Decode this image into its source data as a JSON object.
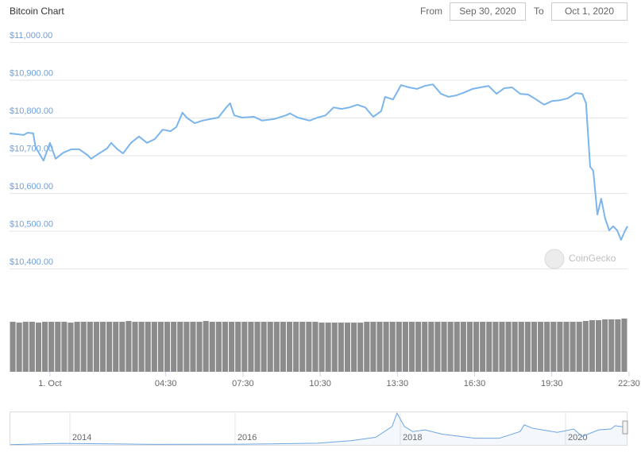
{
  "date_range": {
    "from_label": "From",
    "from_date": "Sep 30, 2020",
    "to_label": "To",
    "to_date": "Oct 1, 2020"
  },
  "watermark": "CoinGecko",
  "chart_data": [
    {
      "type": "line",
      "title": "Bitcoin Chart",
      "color": "#7cb5ec",
      "grid": true,
      "x": [
        -1.57,
        -1.02,
        -0.86,
        -0.65,
        -0.56,
        -0.25,
        0,
        0.22,
        0.52,
        0.83,
        1.14,
        1.45,
        1.6,
        1.91,
        2.22,
        2.38,
        2.62,
        2.84,
        3.15,
        3.46,
        3.77,
        4.07,
        4.38,
        4.69,
        4.91,
        5.15,
        5.31,
        5.62,
        5.93,
        6.23,
        6.54,
        6.85,
        7.0,
        7.16,
        7.47,
        7.93,
        8.24,
        8.7,
        9.17,
        9.32,
        9.63,
        10.09,
        10.4,
        10.71,
        11.02,
        11.33,
        11.64,
        11.94,
        12.25,
        12.56,
        12.87,
        13.02,
        13.33,
        13.64,
        13.95,
        14.26,
        14.57,
        14.88,
        15.19,
        15.49,
        15.8,
        16.11,
        16.42,
        16.73,
        17.04,
        17.35,
        17.65,
        17.96,
        18.27,
        18.58,
        18.89,
        19.2,
        19.51,
        19.81,
        20.12,
        20.43,
        20.68,
        20.83,
        20.99,
        21.11,
        21.27,
        21.42,
        21.57,
        21.73,
        21.88,
        22.04,
        22.19,
        22.35,
        22.44
      ],
      "values": [
        10758,
        10754,
        10760,
        10758,
        10722,
        10686,
        10733,
        10691,
        10707,
        10716,
        10716,
        10701,
        10691,
        10705,
        10718,
        10733,
        10716,
        10705,
        10733,
        10750,
        10733,
        10743,
        10768,
        10764,
        10775,
        10813,
        10800,
        10785,
        10792,
        10796,
        10800,
        10827,
        10838,
        10806,
        10800,
        10802,
        10792,
        10796,
        10806,
        10811,
        10800,
        10792,
        10800,
        10806,
        10827,
        10823,
        10827,
        10834,
        10827,
        10802,
        10817,
        10855,
        10848,
        10886,
        10880,
        10876,
        10884,
        10888,
        10863,
        10855,
        10859,
        10867,
        10876,
        10880,
        10884,
        10863,
        10878,
        10880,
        10863,
        10861,
        10848,
        10834,
        10844,
        10846,
        10851,
        10865,
        10863,
        10838,
        10670,
        10659,
        10543,
        10585,
        10533,
        10501,
        10512,
        10501,
        10476,
        10501,
        10512
      ],
      "xlim": [
        -1.57,
        22.44
      ],
      "xticks": [
        {
          "value": 0,
          "label": "1. Oct"
        },
        {
          "value": 4.5,
          "label": "04:30"
        },
        {
          "value": 7.5,
          "label": "07:30"
        },
        {
          "value": 10.5,
          "label": "10:30"
        },
        {
          "value": 13.5,
          "label": "13:30"
        },
        {
          "value": 16.5,
          "label": "16:30"
        },
        {
          "value": 19.5,
          "label": "19:30"
        },
        {
          "value": 22.5,
          "label": "22:30"
        }
      ],
      "ylim": [
        10400,
        11000
      ],
      "yticks": [
        {
          "value": 10400,
          "label": "$10,400.00"
        },
        {
          "value": 10500,
          "label": "$10,500.00"
        },
        {
          "value": 10600,
          "label": "$10,600.00"
        },
        {
          "value": 10700,
          "label": "$10,700.00"
        },
        {
          "value": 10800,
          "label": "$10,800.00"
        },
        {
          "value": 10900,
          "label": "$10,900.00"
        },
        {
          "value": 11000,
          "label": "$11,000.00"
        }
      ]
    },
    {
      "type": "bar",
      "color": "#8c8c8c",
      "ylim": [
        0,
        66
      ],
      "values": [
        62,
        61,
        62,
        62,
        61,
        62,
        62,
        62,
        62,
        61,
        62,
        62,
        62,
        62,
        62,
        62,
        62,
        62,
        63,
        62,
        62,
        62,
        62,
        62,
        62,
        62,
        62,
        62,
        62,
        62,
        63,
        62,
        62,
        62,
        62,
        62,
        62,
        62,
        62,
        62,
        62,
        62,
        62,
        62,
        62,
        62,
        62,
        62,
        61,
        61,
        61,
        61,
        61,
        61,
        61,
        62,
        62,
        62,
        62,
        62,
        62,
        62,
        62,
        62,
        62,
        62,
        62,
        62,
        62,
        62,
        62,
        62,
        62,
        62,
        62,
        62,
        62,
        62,
        62,
        62,
        62,
        62,
        62,
        62,
        62,
        62,
        62,
        62,
        62,
        63,
        64,
        64,
        65,
        65,
        65,
        66
      ]
    },
    {
      "type": "area",
      "color": "#6fa6e0",
      "x": [
        2013.27,
        2013.9,
        2014.0,
        2014.5,
        2015.0,
        2016.0,
        2016.5,
        2017.0,
        2017.4,
        2017.7,
        2017.9,
        2017.96,
        2018.05,
        2018.15,
        2018.3,
        2018.5,
        2018.9,
        2019.2,
        2019.45,
        2019.5,
        2019.6,
        2019.9,
        2020.1,
        2020.2,
        2020.4,
        2020.55,
        2020.6,
        2020.75
      ],
      "values": [
        100,
        900,
        800,
        600,
        300,
        400,
        650,
        1000,
        2500,
        4500,
        11000,
        19000,
        11000,
        8000,
        9000,
        6500,
        4000,
        4000,
        8000,
        12000,
        10000,
        7500,
        9500,
        5000,
        9000,
        9500,
        11500,
        10500
      ],
      "xlim": [
        2013.27,
        2020.75
      ],
      "ylim": [
        0,
        20000
      ],
      "xticks": [
        2014,
        2016,
        2018,
        2020
      ]
    }
  ]
}
